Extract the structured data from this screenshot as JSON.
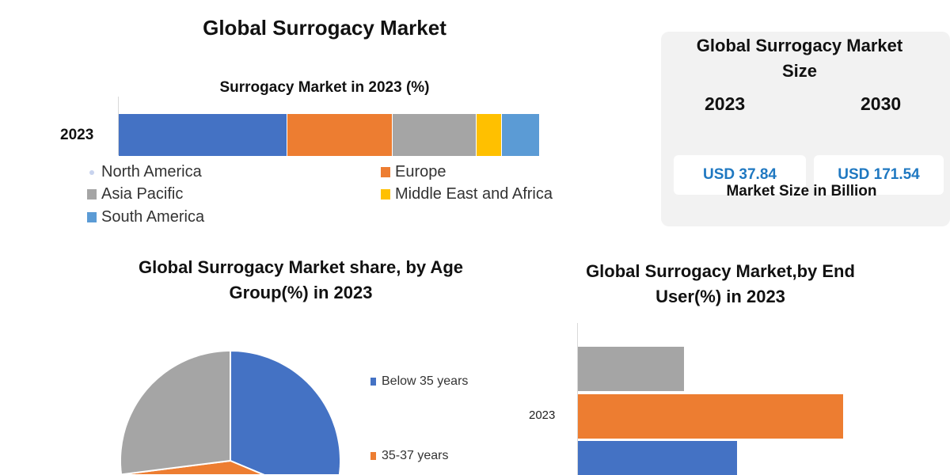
{
  "title": "Global Surrogacy Market",
  "size_panel": {
    "title": "Global Surrogacy Market Size",
    "years": [
      "2023",
      "2030"
    ],
    "values": [
      "USD 37.84",
      "USD 171.54"
    ],
    "note": "Market Size in Billion",
    "value_color": "#1f78c1"
  },
  "chart_data": [
    {
      "type": "bar",
      "orientation": "horizontal-stacked",
      "title": "Surrogacy Market in 2023 (%)",
      "categories": [
        "2023"
      ],
      "series": [
        {
          "name": "North America",
          "values": [
            40
          ],
          "color": "#4472c4"
        },
        {
          "name": "Europe",
          "values": [
            25
          ],
          "color": "#ed7d31"
        },
        {
          "name": "Asia Pacific",
          "values": [
            20
          ],
          "color": "#a5a5a5"
        },
        {
          "name": "Middle East and Africa",
          "values": [
            6
          ],
          "color": "#ffc000"
        },
        {
          "name": "South America",
          "values": [
            9
          ],
          "color": "#5b9bd5"
        }
      ],
      "legend": "bottom"
    },
    {
      "type": "pie",
      "title": "Global Surrogacy Market share, by Age Group(%) in 2023",
      "slices": [
        {
          "name": "Below 35 years",
          "value": 45,
          "color": "#4472c4"
        },
        {
          "name": "35-37 years",
          "value": 28,
          "color": "#ed7d31"
        },
        {
          "name": "",
          "value": 27,
          "color": "#a5a5a5"
        }
      ],
      "legend": "right"
    },
    {
      "type": "bar",
      "orientation": "horizontal-clustered",
      "title": "Global Surrogacy Market,by End User(%) in 2023",
      "categories": [
        "2023"
      ],
      "series": [
        {
          "values": [
            20
          ],
          "color": "#a5a5a5"
        },
        {
          "values": [
            50
          ],
          "color": "#ed7d31"
        },
        {
          "values": [
            30
          ],
          "color": "#4472c4"
        }
      ]
    }
  ]
}
